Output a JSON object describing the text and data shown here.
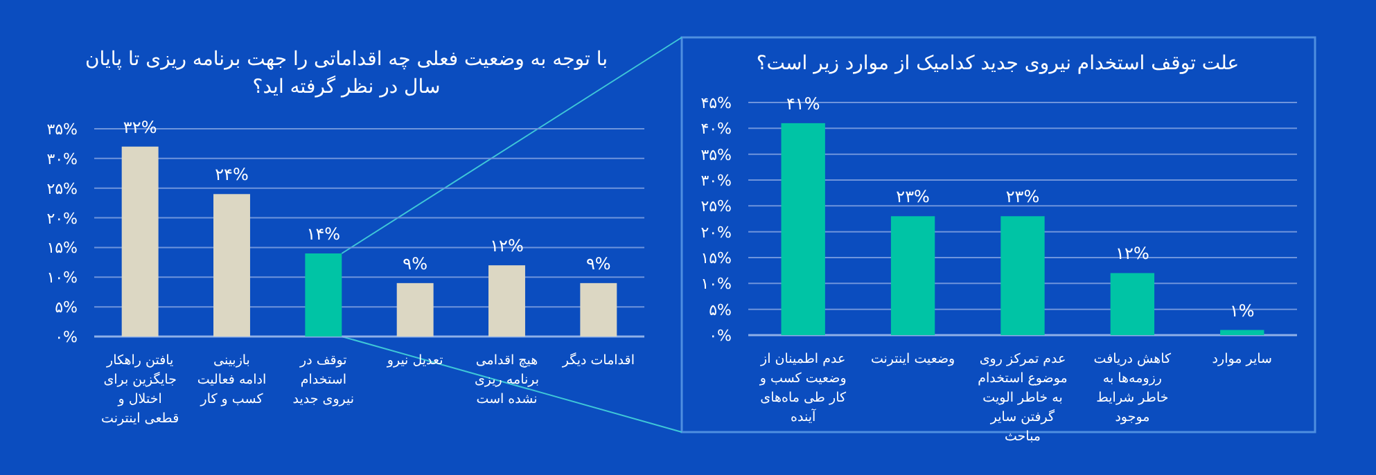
{
  "chart_data": [
    {
      "type": "bar",
      "title": "با توجه به وضعیت فعلی چه اقداماتی را جهت برنامه ریزی تا پایان سال در نظر گرفته اید؟",
      "categories": [
        "یافتن راهکار جایگزین برای اختلال و قطعی اینترنت",
        "بازبینی ادامه فعالیت کسب و کار",
        "توقف در استخدام نیروی جدید",
        "تعدیل نیرو",
        "هیچ اقدامی برنامه ریزی نشده است",
        "اقدامات دیگر"
      ],
      "values": [
        32,
        24,
        14,
        9,
        12,
        9
      ],
      "colors": [
        "#dcd7c3",
        "#dcd7c3",
        "#00c4a5",
        "#dcd7c3",
        "#dcd7c3",
        "#dcd7c3"
      ],
      "value_labels": [
        "۳۲%",
        "۲۴%",
        "۱۴%",
        "۹%",
        "۱۲%",
        "۹%"
      ],
      "ylim": [
        0,
        35
      ],
      "yticks": [
        {
          "value": 0,
          "label": "۰%"
        },
        {
          "value": 5,
          "label": "۵%"
        },
        {
          "value": 10,
          "label": "۱۰%"
        },
        {
          "value": 15,
          "label": "۱۵%"
        },
        {
          "value": 20,
          "label": "۲۰%"
        },
        {
          "value": 25,
          "label": "۲۵%"
        },
        {
          "value": 30,
          "label": "۳۰%"
        },
        {
          "value": 35,
          "label": "۳۵%"
        }
      ],
      "grid": "y"
    },
    {
      "type": "bar",
      "title": "علت توقف استخدام نیروی جدید کدامیک از موارد زیر است؟",
      "categories": [
        "عدم اطمینان از وضعیت کسب و کار طی ماه‌های آینده",
        "وضعیت اینترنت",
        "عدم تمرکز روی موضوع استخدام به خاطر الویت گرفتن سایر مباحث",
        "کاهش دریافت رزومه‌ها به خاطر شرایط موجود",
        "سایر موارد"
      ],
      "values": [
        41,
        23,
        23,
        12,
        1
      ],
      "colors": [
        "#00c4a5",
        "#00c4a5",
        "#00c4a5",
        "#00c4a5",
        "#00c4a5"
      ],
      "value_labels": [
        "۴۱%",
        "۲۳%",
        "۲۳%",
        "۱۲%",
        "۱%"
      ],
      "ylim": [
        0,
        45
      ],
      "yticks": [
        {
          "value": 0,
          "label": "۰%"
        },
        {
          "value": 5,
          "label": "۵%"
        },
        {
          "value": 10,
          "label": "۱۰%"
        },
        {
          "value": 15,
          "label": "۱۵%"
        },
        {
          "value": 20,
          "label": "۲۰%"
        },
        {
          "value": 25,
          "label": "۲۵%"
        },
        {
          "value": 30,
          "label": "۳۰%"
        },
        {
          "value": 35,
          "label": "۳۵%"
        },
        {
          "value": 40,
          "label": "۴۰%"
        },
        {
          "value": 45,
          "label": "۴۵%"
        }
      ],
      "grid": "y"
    }
  ]
}
